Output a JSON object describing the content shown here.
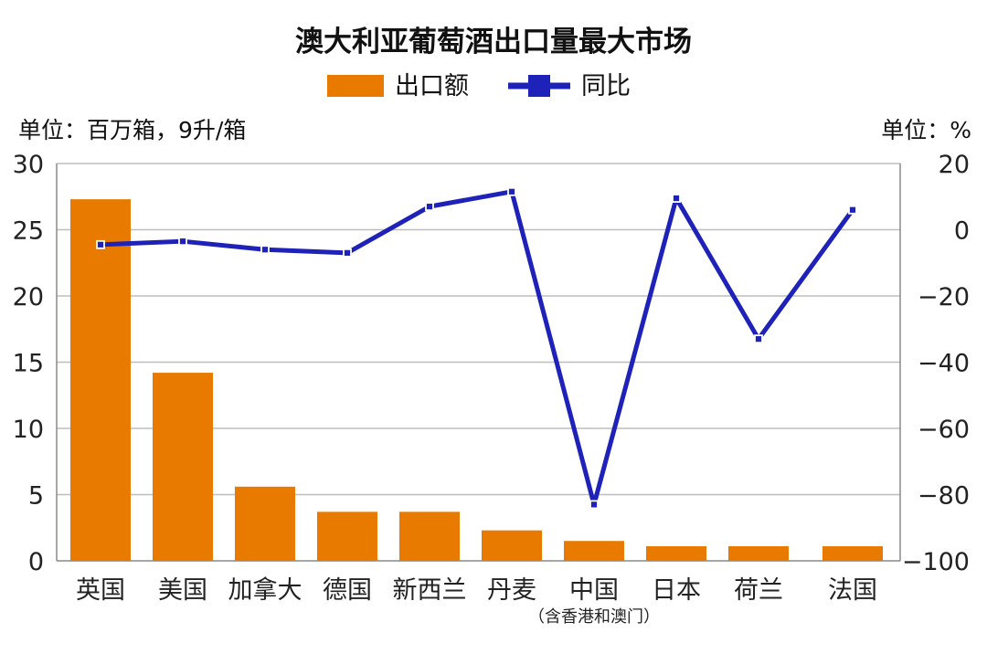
{
  "chart_data": {
    "type": "bar",
    "title": "澳大利亚葡萄酒出口量最大市场",
    "legend": {
      "position": "top-center",
      "bar_label": "出口额",
      "line_label": "同比"
    },
    "left_unit_label": "单位：百万箱，9升/箱",
    "right_unit_label": "单位：%",
    "categories": [
      "英国",
      "美国",
      "加拿大",
      "德国",
      "新西兰",
      "丹麦",
      "中国",
      "日本",
      "荷兰",
      "法国"
    ],
    "category_note": {
      "category": "中国",
      "text": "（含香港和澳门）"
    },
    "series": [
      {
        "name": "出口额",
        "type": "bar",
        "axis": "left",
        "color": "#E87A00",
        "values": [
          27.3,
          14.2,
          5.6,
          3.7,
          3.7,
          2.3,
          1.5,
          1.1,
          1.1,
          1.1
        ]
      },
      {
        "name": "同比",
        "type": "line",
        "axis": "right",
        "color": "#1F22B8",
        "values": [
          -4.5,
          -3.5,
          -6.0,
          -7.0,
          7.0,
          11.5,
          -83.0,
          9.5,
          -33.0,
          6.0
        ]
      }
    ],
    "y_left": {
      "ylim": [
        0,
        30
      ],
      "ticks": [
        0,
        5,
        10,
        15,
        20,
        25,
        30
      ]
    },
    "y_right": {
      "ylim": [
        -100,
        20
      ],
      "ticks": [
        20,
        0,
        -20,
        -40,
        -60,
        -80,
        -100
      ],
      "tick_labels": [
        "20",
        "0",
        "−20",
        "−40",
        "−60",
        "−80",
        "−100"
      ]
    },
    "grid": true
  }
}
